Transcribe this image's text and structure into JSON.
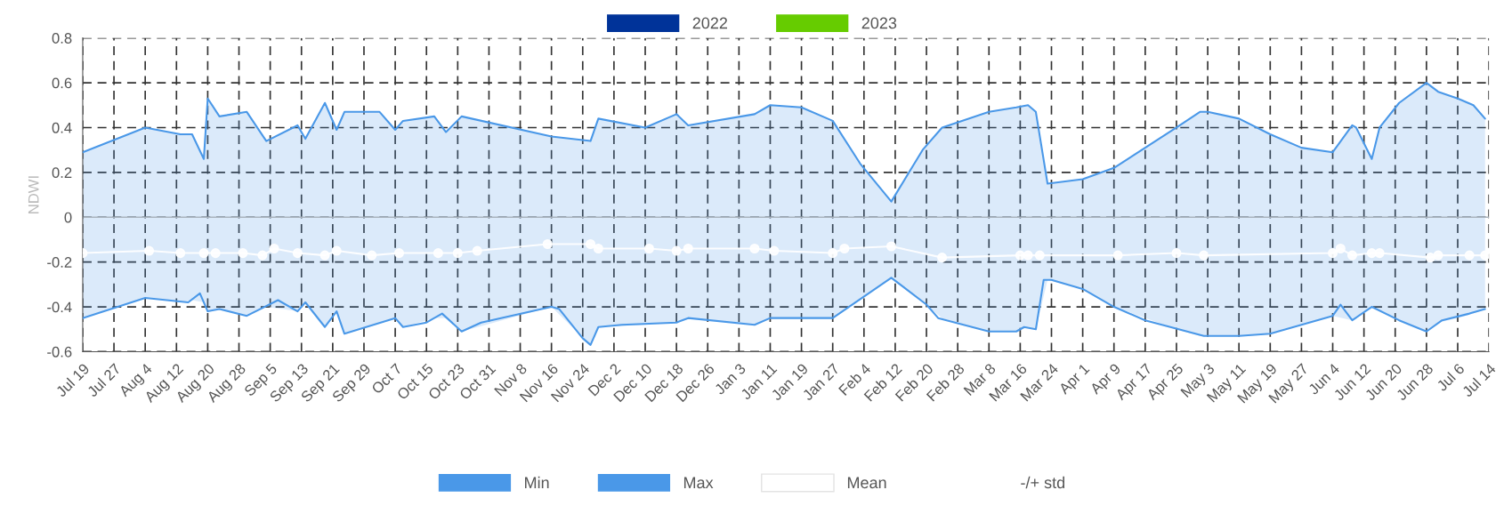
{
  "chart_data": {
    "type": "line",
    "ylabel": "NDWI",
    "ylim": [
      -0.6,
      0.8
    ],
    "yticks": [
      -0.6,
      -0.4,
      -0.2,
      0,
      0.2,
      0.4,
      0.6,
      0.8
    ],
    "xlim": [
      "2022-07-19",
      "2023-07-14"
    ],
    "xticks": [
      {
        "value": "2022-07-19",
        "label": "Jul 19"
      },
      {
        "value": "2022-07-27",
        "label": "Jul 27"
      },
      {
        "value": "2022-08-04",
        "label": "Aug 4"
      },
      {
        "value": "2022-08-12",
        "label": "Aug 12"
      },
      {
        "value": "2022-08-20",
        "label": "Aug 20"
      },
      {
        "value": "2022-08-28",
        "label": "Aug 28"
      },
      {
        "value": "2022-09-05",
        "label": "Sep 5"
      },
      {
        "value": "2022-09-13",
        "label": "Sep 13"
      },
      {
        "value": "2022-09-21",
        "label": "Sep 21"
      },
      {
        "value": "2022-09-29",
        "label": "Sep 29"
      },
      {
        "value": "2022-10-07",
        "label": "Oct 7"
      },
      {
        "value": "2022-10-15",
        "label": "Oct 15"
      },
      {
        "value": "2022-10-23",
        "label": "Oct 23"
      },
      {
        "value": "2022-10-31",
        "label": "Oct 31"
      },
      {
        "value": "2022-11-08",
        "label": "Nov 8"
      },
      {
        "value": "2022-11-16",
        "label": "Nov 16"
      },
      {
        "value": "2022-11-24",
        "label": "Nov 24"
      },
      {
        "value": "2022-12-02",
        "label": "Dec 2"
      },
      {
        "value": "2022-12-10",
        "label": "Dec 10"
      },
      {
        "value": "2022-12-18",
        "label": "Dec 18"
      },
      {
        "value": "2022-12-26",
        "label": "Dec 26"
      },
      {
        "value": "2023-01-03",
        "label": "Jan 3"
      },
      {
        "value": "2023-01-11",
        "label": "Jan 11"
      },
      {
        "value": "2023-01-19",
        "label": "Jan 19"
      },
      {
        "value": "2023-01-27",
        "label": "Jan 27"
      },
      {
        "value": "2023-02-04",
        "label": "Feb 4"
      },
      {
        "value": "2023-02-12",
        "label": "Feb 12"
      },
      {
        "value": "2023-02-20",
        "label": "Feb 20"
      },
      {
        "value": "2023-02-28",
        "label": "Feb 28"
      },
      {
        "value": "2023-03-08",
        "label": "Mar 8"
      },
      {
        "value": "2023-03-16",
        "label": "Mar 16"
      },
      {
        "value": "2023-03-24",
        "label": "Mar 24"
      },
      {
        "value": "2023-04-01",
        "label": "Apr 1"
      },
      {
        "value": "2023-04-09",
        "label": "Apr 9"
      },
      {
        "value": "2023-04-17",
        "label": "Apr 17"
      },
      {
        "value": "2023-04-25",
        "label": "Apr 25"
      },
      {
        "value": "2023-05-03",
        "label": "May 3"
      },
      {
        "value": "2023-05-11",
        "label": "May 11"
      },
      {
        "value": "2023-05-19",
        "label": "May 19"
      },
      {
        "value": "2023-05-27",
        "label": "May 27"
      },
      {
        "value": "2023-06-04",
        "label": "Jun 4"
      },
      {
        "value": "2023-06-12",
        "label": "Jun 12"
      },
      {
        "value": "2023-06-20",
        "label": "Jun 20"
      },
      {
        "value": "2023-06-28",
        "label": "Jun 28"
      },
      {
        "value": "2023-07-06",
        "label": "Jul 6"
      },
      {
        "value": "2023-07-14",
        "label": "Jul 14"
      }
    ],
    "grid": true,
    "legend": "bottom",
    "ref_lines": [
      {
        "axis": "y",
        "value": 0,
        "color": "#a9b3bd"
      }
    ],
    "series": [
      {
        "name": "2022",
        "color": "#003399"
      },
      {
        "name": "2023",
        "color": "#66cc00"
      },
      {
        "name": "Min",
        "color": "#4a98e8",
        "marker": "none",
        "x": [
          "2022-07-19",
          "2022-08-04",
          "2022-08-15",
          "2022-08-18",
          "2022-08-20",
          "2022-08-23",
          "2022-08-30",
          "2022-09-07",
          "2022-09-12",
          "2022-09-14",
          "2022-09-19",
          "2022-09-22",
          "2022-09-24",
          "2022-10-07",
          "2022-10-09",
          "2022-10-15",
          "2022-10-19",
          "2022-10-24",
          "2022-10-29",
          "2022-11-16",
          "2022-11-18",
          "2022-11-24",
          "2022-11-26",
          "2022-11-28",
          "2022-12-04",
          "2022-12-18",
          "2022-12-21",
          "2023-01-07",
          "2023-01-11",
          "2023-01-27",
          "2023-02-11",
          "2023-02-20",
          "2023-02-23",
          "2023-03-08",
          "2023-03-15",
          "2023-03-17",
          "2023-03-20",
          "2023-03-22",
          "2023-03-24",
          "2023-04-01",
          "2023-04-09",
          "2023-04-17",
          "2023-05-02",
          "2023-05-11",
          "2023-05-19",
          "2023-05-27",
          "2023-06-04",
          "2023-06-06",
          "2023-06-09",
          "2023-06-14",
          "2023-06-21",
          "2023-06-28",
          "2023-07-02",
          "2023-07-09",
          "2023-07-13"
        ],
        "values": [
          -0.45,
          -0.36,
          -0.38,
          -0.34,
          -0.42,
          -0.41,
          -0.44,
          -0.37,
          -0.42,
          -0.38,
          -0.49,
          -0.42,
          -0.52,
          -0.45,
          -0.49,
          -0.47,
          -0.43,
          -0.51,
          -0.47,
          -0.4,
          -0.41,
          -0.54,
          -0.57,
          -0.49,
          -0.48,
          -0.47,
          -0.45,
          -0.48,
          -0.45,
          -0.45,
          -0.27,
          -0.39,
          -0.45,
          -0.51,
          -0.51,
          -0.49,
          -0.5,
          -0.28,
          -0.28,
          -0.32,
          -0.4,
          -0.46,
          -0.53,
          -0.53,
          -0.52,
          -0.48,
          -0.44,
          -0.39,
          -0.46,
          -0.4,
          -0.46,
          -0.51,
          -0.46,
          -0.43,
          -0.41
        ]
      },
      {
        "name": "Max",
        "color": "#4a98e8",
        "marker": "none",
        "x": [
          "2022-07-19",
          "2022-08-04",
          "2022-08-13",
          "2022-08-16",
          "2022-08-19",
          "2022-08-20",
          "2022-08-23",
          "2022-08-30",
          "2022-09-04",
          "2022-09-12",
          "2022-09-14",
          "2022-09-19",
          "2022-09-22",
          "2022-09-24",
          "2022-10-03",
          "2022-10-07",
          "2022-10-09",
          "2022-10-17",
          "2022-10-20",
          "2022-10-24",
          "2022-11-16",
          "2022-11-26",
          "2022-11-28",
          "2022-12-10",
          "2022-12-18",
          "2022-12-21",
          "2023-01-07",
          "2023-01-11",
          "2023-01-19",
          "2023-01-27",
          "2023-02-03",
          "2023-02-11",
          "2023-02-19",
          "2023-02-24",
          "2023-03-08",
          "2023-03-15",
          "2023-03-18",
          "2023-03-20",
          "2023-03-23",
          "2023-04-01",
          "2023-04-09",
          "2023-04-25",
          "2023-05-01",
          "2023-05-03",
          "2023-05-11",
          "2023-05-19",
          "2023-05-27",
          "2023-06-04",
          "2023-06-09",
          "2023-06-10",
          "2023-06-14",
          "2023-06-16",
          "2023-06-21",
          "2023-06-28",
          "2023-07-01",
          "2023-07-06",
          "2023-07-10",
          "2023-07-13"
        ],
        "values": [
          0.29,
          0.4,
          0.37,
          0.37,
          0.26,
          0.53,
          0.45,
          0.47,
          0.34,
          0.41,
          0.35,
          0.51,
          0.39,
          0.47,
          0.47,
          0.39,
          0.43,
          0.45,
          0.38,
          0.45,
          0.36,
          0.34,
          0.44,
          0.4,
          0.46,
          0.41,
          0.46,
          0.5,
          0.49,
          0.43,
          0.24,
          0.07,
          0.3,
          0.4,
          0.47,
          0.49,
          0.5,
          0.47,
          0.15,
          0.17,
          0.22,
          0.4,
          0.47,
          0.47,
          0.44,
          0.37,
          0.31,
          0.29,
          0.41,
          0.4,
          0.26,
          0.4,
          0.51,
          0.6,
          0.56,
          0.53,
          0.5,
          0.44
        ],
        "lower": [
          -0.45,
          -0.36,
          -0.38,
          -0.37,
          -0.38,
          -0.42,
          -0.41,
          -0.44,
          -0.4,
          -0.42,
          -0.38,
          -0.49,
          -0.42,
          -0.52,
          -0.47,
          -0.45,
          -0.49,
          -0.45,
          -0.45,
          -0.51,
          -0.4,
          -0.57,
          -0.49,
          -0.48,
          -0.47,
          -0.45,
          -0.48,
          -0.45,
          -0.45,
          -0.45,
          -0.37,
          -0.27,
          -0.38,
          -0.45,
          -0.51,
          -0.51,
          -0.49,
          -0.5,
          -0.28,
          -0.32,
          -0.4,
          -0.5,
          -0.53,
          -0.53,
          -0.53,
          -0.52,
          -0.48,
          -0.44,
          -0.46,
          -0.45,
          -0.4,
          -0.42,
          -0.46,
          -0.51,
          -0.47,
          -0.45,
          -0.43,
          -0.41
        ],
        "upper": [
          0.29,
          0.4,
          0.37,
          0.37,
          0.26,
          0.53,
          0.45,
          0.47,
          0.34,
          0.41,
          0.35,
          0.51,
          0.39,
          0.47,
          0.47,
          0.39,
          0.43,
          0.45,
          0.38,
          0.45,
          0.36,
          0.34,
          0.44,
          0.4,
          0.46,
          0.41,
          0.46,
          0.5,
          0.49,
          0.43,
          0.24,
          0.07,
          0.3,
          0.4,
          0.47,
          0.49,
          0.5,
          0.47,
          0.15,
          0.17,
          0.22,
          0.4,
          0.47,
          0.47,
          0.44,
          0.37,
          0.31,
          0.29,
          0.41,
          0.4,
          0.26,
          0.4,
          0.51,
          0.6,
          0.56,
          0.53,
          0.5,
          0.44
        ]
      },
      {
        "name": "Mean",
        "color": "#ffffff",
        "marker": "circle",
        "x": [
          "2022-07-19",
          "2022-08-05",
          "2022-08-13",
          "2022-08-19",
          "2022-08-22",
          "2022-08-29",
          "2022-09-03",
          "2022-09-06",
          "2022-09-12",
          "2022-09-19",
          "2022-09-22",
          "2022-10-01",
          "2022-10-08",
          "2022-10-18",
          "2022-10-23",
          "2022-10-28",
          "2022-11-15",
          "2022-11-26",
          "2022-11-28",
          "2022-12-11",
          "2022-12-18",
          "2022-12-21",
          "2023-01-07",
          "2023-01-12",
          "2023-01-27",
          "2023-01-30",
          "2023-02-11",
          "2023-02-24",
          "2023-03-16",
          "2023-03-18",
          "2023-03-21",
          "2023-04-10",
          "2023-04-25",
          "2023-05-02",
          "2023-06-04",
          "2023-06-06",
          "2023-06-09",
          "2023-06-14",
          "2023-06-16",
          "2023-06-29",
          "2023-07-01",
          "2023-07-09",
          "2023-07-13"
        ],
        "values": [
          -0.16,
          -0.15,
          -0.16,
          -0.16,
          -0.16,
          -0.16,
          -0.17,
          -0.14,
          -0.16,
          -0.17,
          -0.15,
          -0.17,
          -0.16,
          -0.16,
          -0.16,
          -0.15,
          -0.12,
          -0.12,
          -0.14,
          -0.14,
          -0.15,
          -0.14,
          -0.14,
          -0.15,
          -0.16,
          -0.14,
          -0.13,
          -0.18,
          -0.17,
          -0.17,
          -0.17,
          -0.17,
          -0.16,
          -0.17,
          -0.16,
          -0.14,
          -0.17,
          -0.16,
          -0.16,
          -0.18,
          -0.17,
          -0.17,
          -0.17
        ]
      },
      {
        "name": "-/+ std"
      }
    ]
  }
}
